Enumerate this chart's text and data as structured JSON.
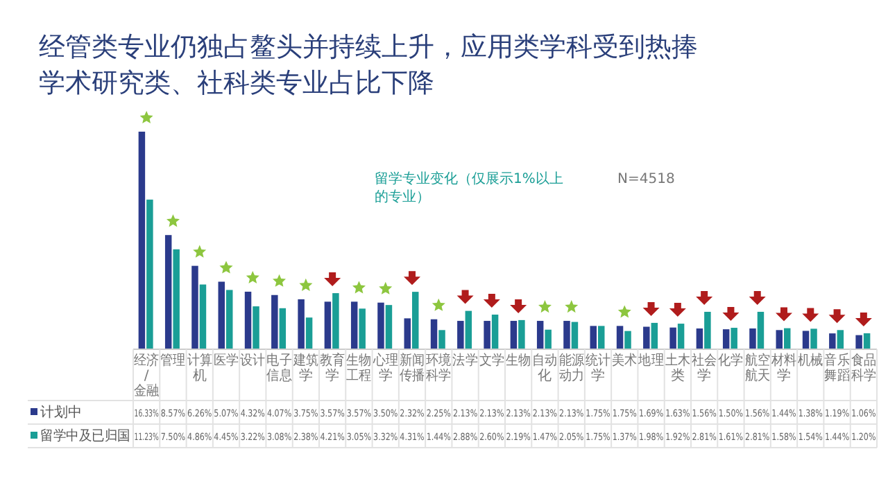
{
  "chart_data": {
    "type": "bar",
    "title": "经管类专业仍独占鳌头并持续上升，应用类学科受到热捧",
    "subtitle": "学术研究类、社科类专业占比下降",
    "annotations": [
      "留学专业变化（仅展示1%以上的专业）",
      "N=4518"
    ],
    "categories": [
      "经济/金融",
      "管理",
      "计算机",
      "医学",
      "设计",
      "电子信息",
      "建筑学",
      "教育学",
      "生物工程",
      "心理学",
      "新闻传播",
      "环境科学",
      "法学",
      "文学",
      "生物",
      "自动化",
      "能源动力",
      "统计学",
      "美术",
      "地理",
      "土木类",
      "社会学",
      "化学",
      "航空航天",
      "材料学",
      "机械",
      "音乐舞蹈",
      "食品科学"
    ],
    "series": [
      {
        "name": "计划中",
        "color": "#2b3a8c",
        "values": [
          16.33,
          8.57,
          6.26,
          5.07,
          4.32,
          4.07,
          3.75,
          3.57,
          3.57,
          3.5,
          2.32,
          2.25,
          2.13,
          2.13,
          2.13,
          2.13,
          2.13,
          1.75,
          1.75,
          1.69,
          1.63,
          1.56,
          1.5,
          1.56,
          1.44,
          1.38,
          1.19,
          1.06
        ],
        "value_labels": [
          "16.33%",
          "8.57%",
          "6.26%",
          "5.07%",
          "4.32%",
          "4.07%",
          "3.75%",
          "3.57%",
          "3.57%",
          "3.50%",
          "2.32%",
          "2.25%",
          "2.13%",
          "2.13%",
          "2.13%",
          "2.13%",
          "2.13%",
          "1.75%",
          "1.75%",
          "1.69%",
          "1.63%",
          "1.56%",
          "1.50%",
          "1.56%",
          "1.44%",
          "1.38%",
          "1.19%",
          "1.06%"
        ]
      },
      {
        "name": "留学中及已归国",
        "color": "#1a9e96",
        "values": [
          11.23,
          7.5,
          4.86,
          4.45,
          3.22,
          3.08,
          2.38,
          4.21,
          3.05,
          3.32,
          4.31,
          1.44,
          2.88,
          2.6,
          2.19,
          1.47,
          2.05,
          1.75,
          1.37,
          1.98,
          1.92,
          2.81,
          1.61,
          2.81,
          1.58,
          1.54,
          1.44,
          1.2
        ],
        "value_labels": [
          "11.23%",
          "7.50%",
          "4.86%",
          "4.45%",
          "3.22%",
          "3.08%",
          "2.38%",
          "4.21%",
          "3.05%",
          "3.32%",
          "4.31%",
          "1.44%",
          "2.88%",
          "2.60%",
          "2.19%",
          "1.47%",
          "2.05%",
          "1.75%",
          "1.37%",
          "1.98%",
          "1.92%",
          "2.81%",
          "1.61%",
          "2.81%",
          "1.58%",
          "1.54%",
          "1.44%",
          "1.20%"
        ]
      }
    ],
    "legend": "bottom"
  }
}
